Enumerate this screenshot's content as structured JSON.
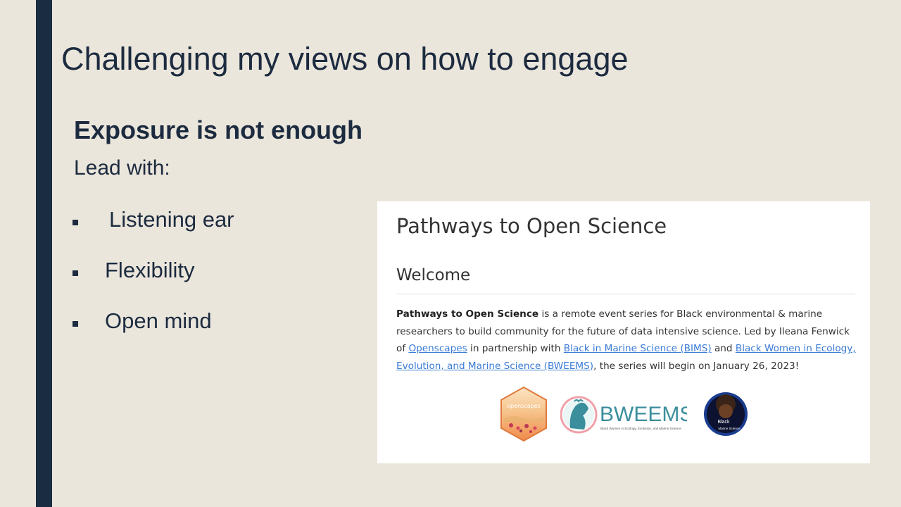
{
  "slide": {
    "title": "Challenging my views on how to engage",
    "subtitle": "Exposure is not enough",
    "lead": "Lead with:",
    "bullets": [
      "Listening ear",
      "Flexibility",
      "Open mind"
    ]
  },
  "screenshot": {
    "page_title": "Pathways to Open Science",
    "section_title": "Welcome",
    "intro": {
      "bold_lead": "Pathways to Open Science",
      "text1": " is a remote event series for Black environmental & marine researchers to build community for the future of data intensive science. Led by Ileana Fenwick of ",
      "link1": "Openscapes",
      "text2": " in partnership with ",
      "link2": "Black in Marine Science (BIMS)",
      "text3": " and ",
      "link3": "Black Women in Ecology, Evolution, and Marine Science (BWEEMS)",
      "text4": ", the series will begin on January 26, 2023!"
    },
    "logos": {
      "openscapes": "openscapes",
      "bweems": "BWEEMS",
      "bweems_tagline": "Black Women in Ecology, Evolution, and Marine Science",
      "bims_top": "Black",
      "bims_bottom": "Marine Science"
    }
  },
  "colors": {
    "background": "#ebe6dc",
    "accent_bar": "#1a2c42",
    "text": "#1c2b3f",
    "link": "#3a7bd5",
    "bweems_teal": "#3b8e9c",
    "openscapes_orange": "#f4a259"
  }
}
